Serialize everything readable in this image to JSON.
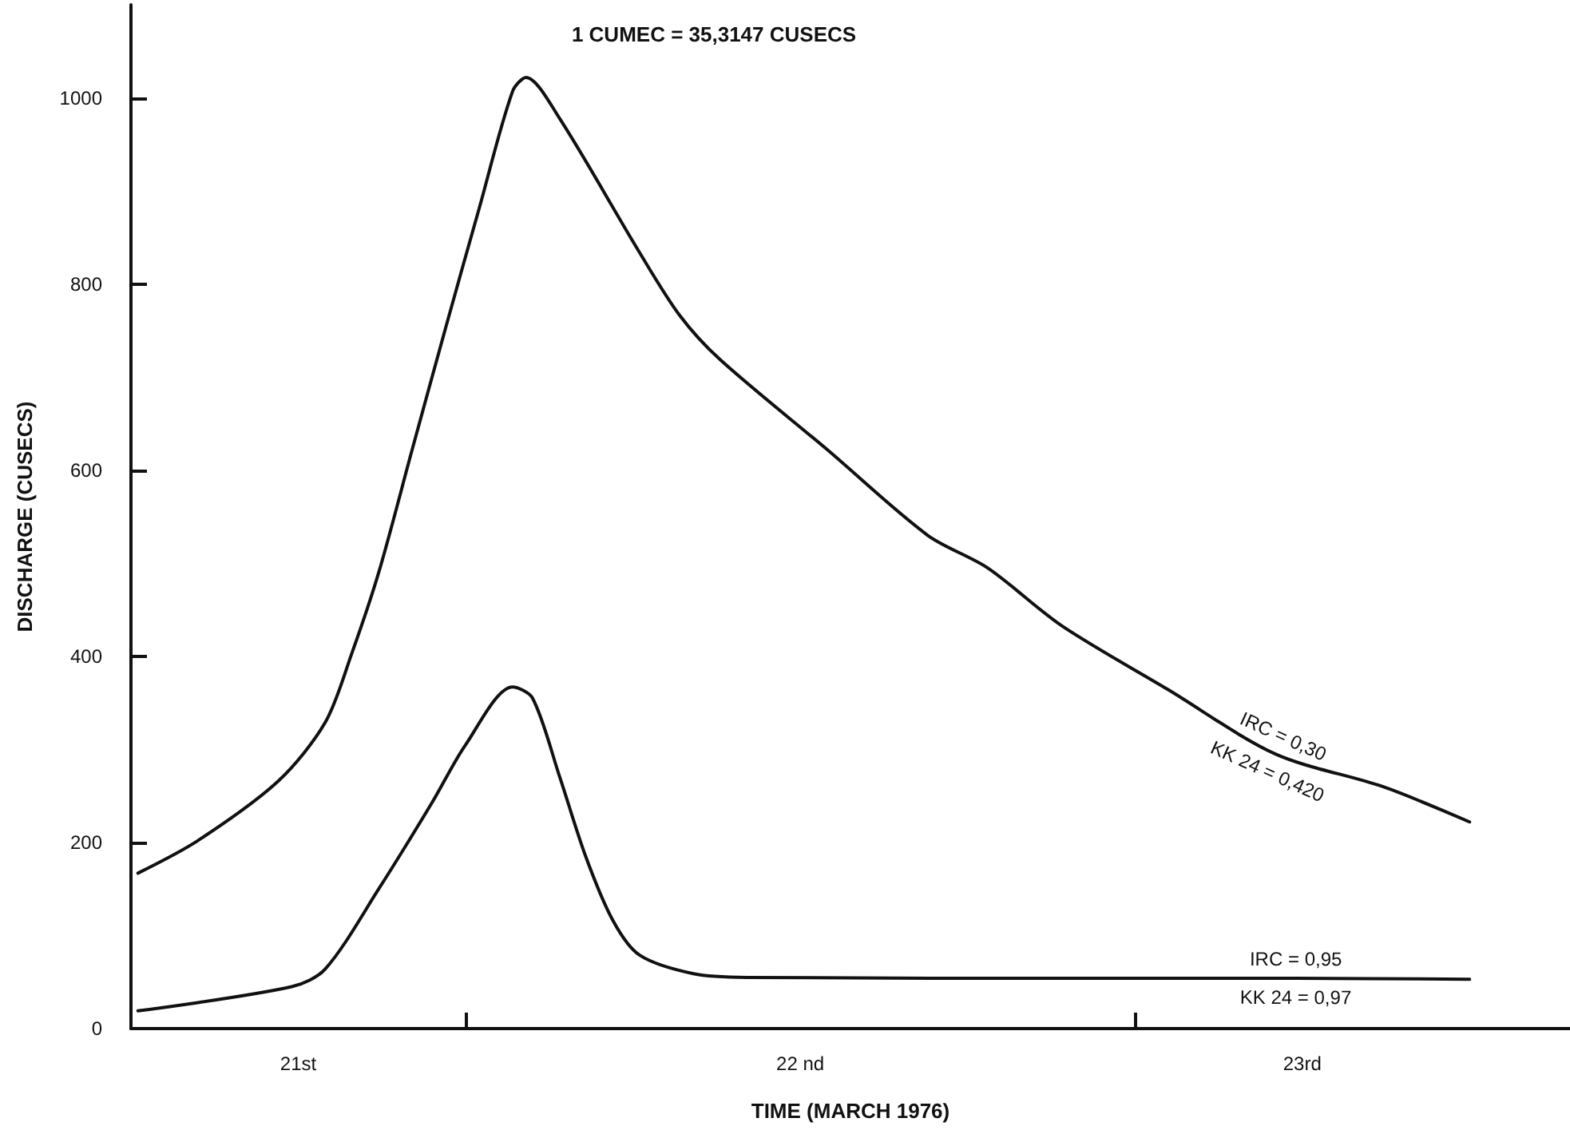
{
  "chart_data": {
    "type": "line",
    "title": "1 CUMEC = 35,3147 CUSECS",
    "xlabel": "TIME (MARCH 1976)",
    "ylabel": "DISCHARGE (CUSECS)",
    "xlim": [
      "1976-03-21T12:00",
      "1976-03-23T15:36"
    ],
    "ylim": [
      0,
      1100
    ],
    "xticks": [
      {
        "value": "1976-03-21T18:00",
        "label": "21st"
      },
      {
        "value": "1976-03-22T00:00",
        "label": null
      },
      {
        "value": "1976-03-22T12:00",
        "label": "22 nd"
      },
      {
        "value": "1976-03-23T00:00",
        "label": null
      },
      {
        "value": "1976-03-23T06:00",
        "label": "23rd"
      }
    ],
    "yticks": [
      0,
      200,
      400,
      600,
      800,
      1000
    ],
    "grid": false,
    "marker": "none",
    "line_style": "solid",
    "series": [
      {
        "color": "#111111",
        "x": [
          "1976-03-21T12:15",
          "1976-03-21T14:24",
          "1976-03-21T17:17",
          "1976-03-21T18:58",
          "1976-03-21T19:55",
          "1976-03-21T20:53",
          "1976-03-21T22:05",
          "1976-03-21T23:17",
          "1976-03-22T00:29",
          "1976-03-22T01:41",
          "1976-03-22T02:10",
          "1976-03-22T03:22",
          "1976-03-22T06:14",
          "1976-03-22T07:41",
          "1976-03-22T09:07",
          "1976-03-22T12:58",
          "1976-03-22T16:34",
          "1976-03-22T18:43",
          "1976-03-22T21:22",
          "1976-03-23T01:12",
          "1976-03-23T05:02",
          "1976-03-23T08:53",
          "1976-03-23T12:00"
        ],
        "values": [
          167,
          202,
          266,
          329,
          403,
          490,
          622,
          753,
          881,
          1007,
          1022,
          978,
          834,
          766,
          719,
          622,
          530,
          495,
          433,
          364,
          295,
          260,
          222
        ]
      },
      {
        "color": "#111111",
        "x": [
          "1976-03-21T12:15",
          "1976-03-21T17:46",
          "1976-03-21T18:58",
          "1976-03-21T20:53",
          "1976-03-21T22:48",
          "1976-03-22T00:00",
          "1976-03-22T01:41",
          "1976-03-22T02:24",
          "1976-03-22T03:22",
          "1976-03-22T04:19",
          "1976-03-22T05:17",
          "1976-03-22T06:14",
          "1976-03-22T08:10",
          "1976-03-22T10:05",
          "1976-03-22T23:17",
          "1976-03-23T05:46",
          "1976-03-23T12:00"
        ],
        "values": [
          19,
          45,
          64,
          150,
          243,
          305,
          367,
          355,
          271,
          184,
          116,
          79,
          59,
          55,
          54,
          54,
          53
        ]
      }
    ],
    "annotations": [
      {
        "text": "IRC = 0,30",
        "x": "1976-03-23T05:02",
        "y": 295
      },
      {
        "text": "KK 24 = 0,420",
        "x": "1976-03-23T05:02",
        "y": 295
      },
      {
        "text": "IRC = 0,95",
        "x": "1976-03-23T05:46",
        "y": 54
      },
      {
        "text": "KK 24 = 0,97",
        "x": "1976-03-23T05:46",
        "y": 54
      }
    ]
  }
}
